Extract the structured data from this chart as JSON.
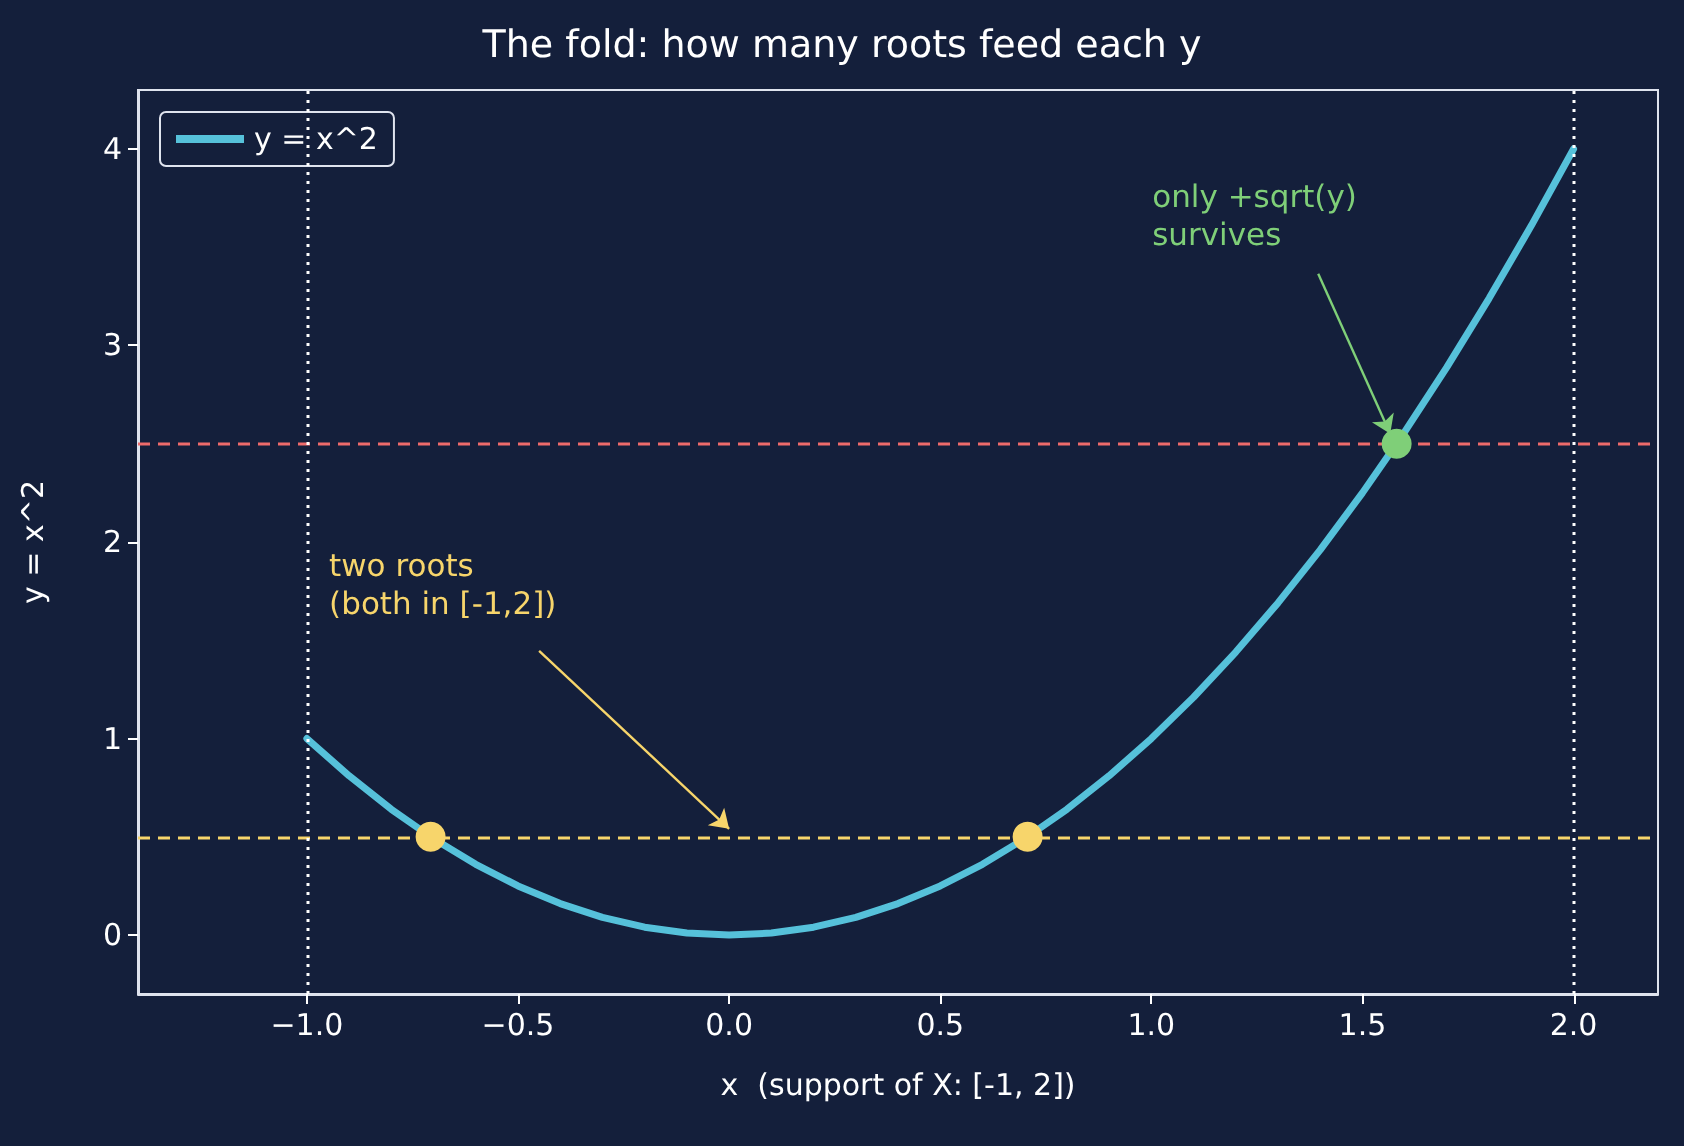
{
  "chart_data": {
    "type": "line",
    "title": "The fold: how many roots feed each y",
    "xlabel": "x  (support of X: [-1, 2])",
    "ylabel": "y = x^2",
    "xlim": [
      -1.4,
      2.2
    ],
    "xticks": [
      {
        "value": -1,
        "label": "−1.0"
      },
      {
        "value": -0.5,
        "label": "−0.5"
      },
      {
        "value": 0,
        "label": "0.0"
      },
      {
        "value": 0.5,
        "label": "0.5"
      },
      {
        "value": 1,
        "label": "1.0"
      },
      {
        "value": 1.5,
        "label": "1.5"
      },
      {
        "value": 2,
        "label": "2.0"
      }
    ],
    "ylim": [
      -0.3,
      4.3
    ],
    "yticks": [
      0,
      1,
      2,
      3,
      4
    ],
    "grid": false,
    "legend": "top left",
    "series": [
      {
        "name": "y = x^2",
        "color": "#56c1da",
        "marker": "none",
        "x": [
          -1,
          -0.9,
          -0.8,
          -0.7,
          -0.6,
          -0.5,
          -0.4,
          -0.3,
          -0.2,
          -0.1,
          0,
          0.1,
          0.2,
          0.3,
          0.4,
          0.5,
          0.6,
          0.7,
          0.8,
          0.9,
          1,
          1.1,
          1.2,
          1.3,
          1.4,
          1.5,
          1.6,
          1.7,
          1.8,
          1.9,
          2
        ],
        "values": [
          1,
          0.81,
          0.64,
          0.49,
          0.36,
          0.25,
          0.16,
          0.09,
          0.04,
          0.01,
          0,
          0.01,
          0.04,
          0.09,
          0.16,
          0.25,
          0.36,
          0.49,
          0.64,
          0.81,
          1,
          1.21,
          1.44,
          1.69,
          1.96,
          2.25,
          2.56,
          2.89,
          3.24,
          3.61,
          4
        ]
      },
      {
        "type": "scatter",
        "color": "#f7d56b",
        "marker": "circle",
        "x": [
          -0.707,
          0.707
        ],
        "values": [
          0.5,
          0.5
        ]
      },
      {
        "type": "scatter",
        "color": "#7fcf78",
        "marker": "circle",
        "x": [
          1.581
        ],
        "values": [
          2.5
        ]
      }
    ],
    "ref_lines": [
      {
        "axis": "y",
        "value": 0.5,
        "color": "#f7d56b",
        "line_style": "dashed"
      },
      {
        "axis": "y",
        "value": 2.5,
        "color": "#ee6b6b",
        "line_style": "dashed"
      },
      {
        "axis": "x",
        "value": -1,
        "color": "#ffffff",
        "line_style": "dotted"
      },
      {
        "axis": "x",
        "value": 2,
        "color": "#ffffff",
        "line_style": "dotted"
      }
    ],
    "annotations": [
      {
        "text": "two roots\n(both in [-1,2])",
        "x": 0,
        "y": 0.5
      },
      {
        "text": "only +sqrt(y)\nsurvives",
        "x": 1.58,
        "y": 2.5
      }
    ]
  }
}
